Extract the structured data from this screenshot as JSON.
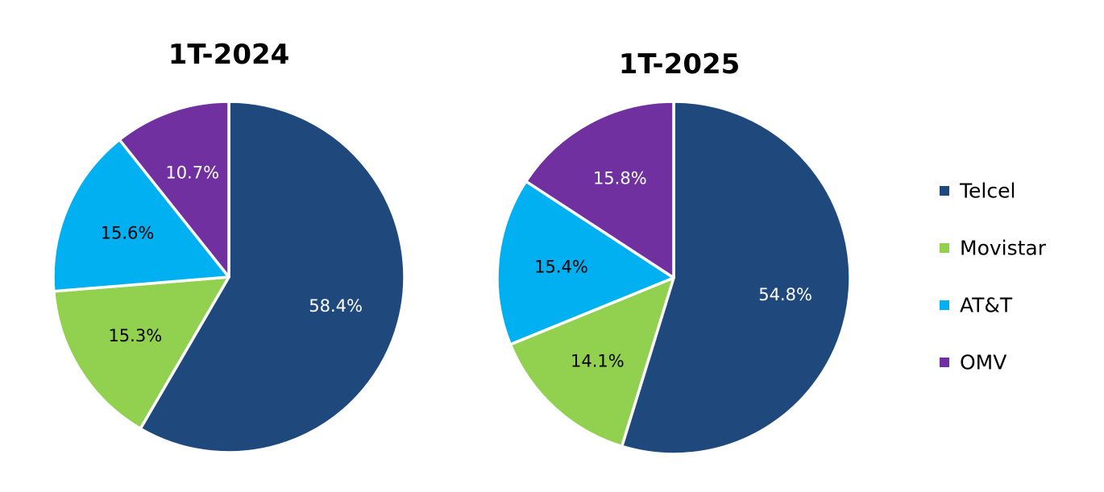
{
  "chart_data": [
    {
      "type": "pie",
      "title": "1T-2024",
      "categories": [
        "Telcel",
        "Movistar",
        "AT&T",
        "OMV"
      ],
      "values": [
        58.4,
        15.3,
        15.6,
        10.7
      ],
      "labels": [
        "58.4%",
        "15.3%",
        "15.6%",
        "10.7%"
      ],
      "colors": [
        "#1F497D",
        "#92D050",
        "#00B0F0",
        "#7030A0"
      ],
      "label_colors": [
        "#FFFFFF",
        "#000000",
        "#000000",
        "#FFFFFF"
      ],
      "start": "12 o'clock, clockwise"
    },
    {
      "type": "pie",
      "title": "1T-2025",
      "categories": [
        "Telcel",
        "Movistar",
        "AT&T",
        "OMV"
      ],
      "values": [
        54.8,
        14.1,
        15.4,
        15.8
      ],
      "labels": [
        "54.8%",
        "14.1%",
        "15.4%",
        "15.8%"
      ],
      "colors": [
        "#1F497D",
        "#92D050",
        "#00B0F0",
        "#7030A0"
      ],
      "label_colors": [
        "#FFFFFF",
        "#000000",
        "#000000",
        "#FFFFFF"
      ],
      "start": "12 o'clock, clockwise"
    }
  ],
  "legend": {
    "placement": "right",
    "items": [
      {
        "label": "Telcel",
        "color": "#1F497D"
      },
      {
        "label": "Movistar",
        "color": "#92D050"
      },
      {
        "label": "AT&T",
        "color": "#00B0F0"
      },
      {
        "label": "OMV",
        "color": "#7030A0"
      }
    ]
  }
}
